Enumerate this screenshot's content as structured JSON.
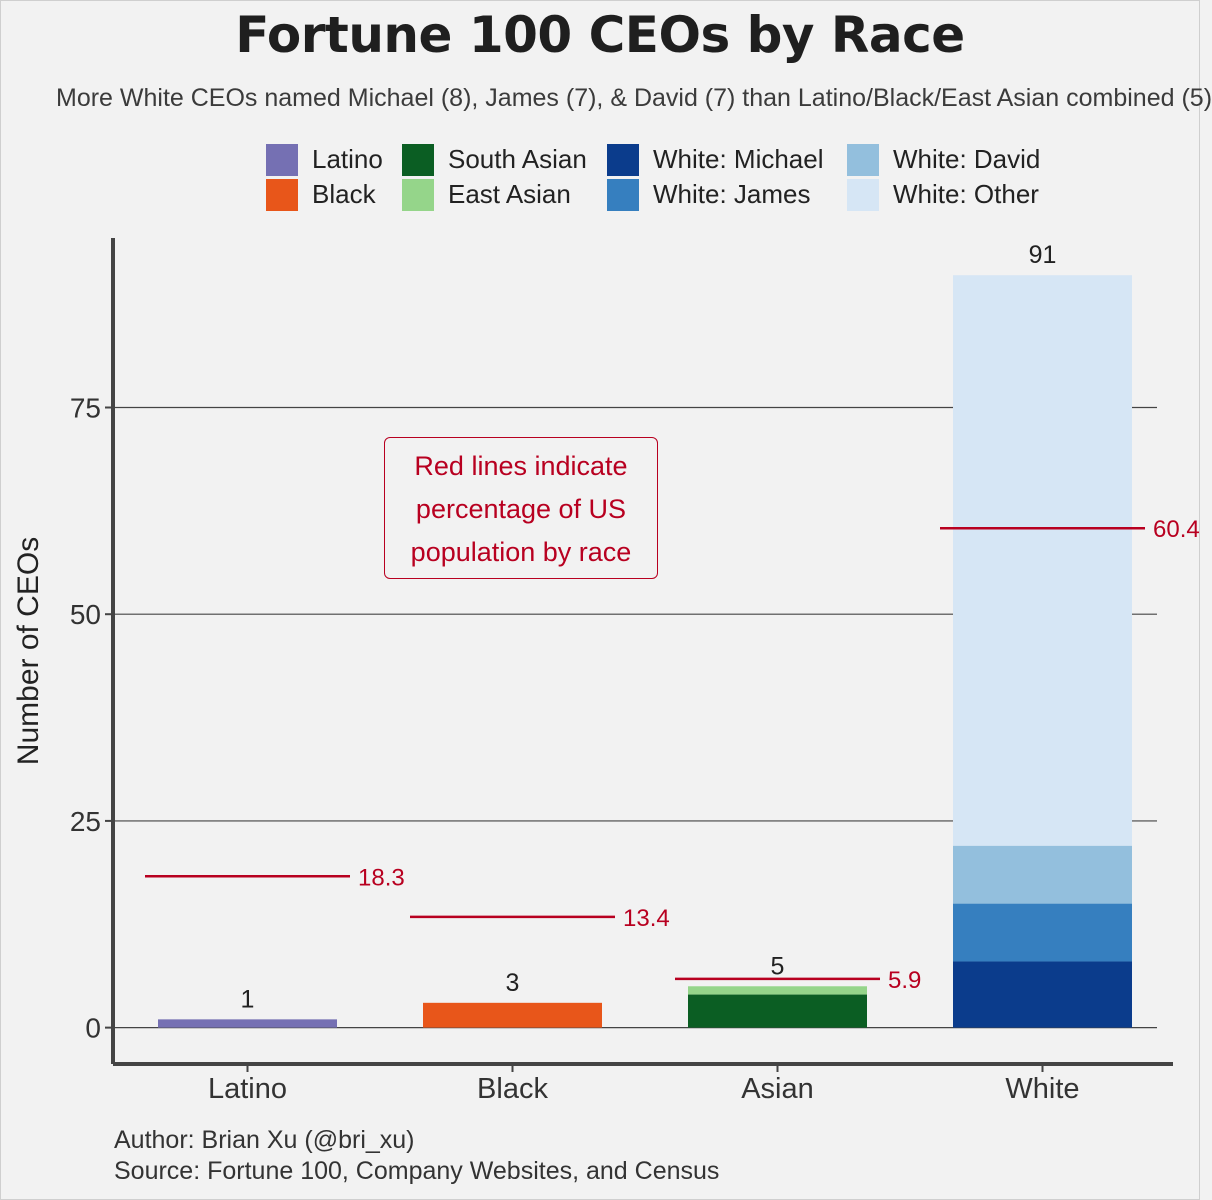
{
  "title": "Fortune 100 CEOs by Race",
  "subtitle": "More White CEOs named Michael (8), James (7), & David (7) than Latino/Black/East Asian combined (5)",
  "legend": [
    {
      "label": "Latino",
      "color": "#7570b3"
    },
    {
      "label": "South Asian",
      "color": "#0b5e23"
    },
    {
      "label": "White: Michael",
      "color": "#0b3c8c"
    },
    {
      "label": "White: David",
      "color": "#93bfdd"
    },
    {
      "label": "Black",
      "color": "#e8561a"
    },
    {
      "label": "East Asian",
      "color": "#95d58a"
    },
    {
      "label": "White: James",
      "color": "#367fbf"
    },
    {
      "label": "White: Other",
      "color": "#d6e6f5"
    }
  ],
  "annotation": {
    "line1": "Red lines indicate",
    "line2": "percentage of US",
    "line3": "population by race",
    "color": "#b80020"
  },
  "caption": {
    "author": "Author: Brian Xu (@bri_xu)",
    "source": "Source: Fortune 100, Company Websites, and Census"
  },
  "chart_data": {
    "type": "bar",
    "stacked": true,
    "categories": [
      "Latino",
      "Black",
      "Asian",
      "White"
    ],
    "ylabel": "Number of CEOs",
    "xlabel": "",
    "ylim": [
      -4.4,
      95.5
    ],
    "yticks": [
      0,
      25,
      50,
      75
    ],
    "grid": "horizontal",
    "legend_position": "top",
    "series": [
      {
        "name": "Latino",
        "color": "#7570b3",
        "values": [
          1,
          0,
          0,
          0
        ]
      },
      {
        "name": "Black",
        "color": "#e8561a",
        "values": [
          0,
          3,
          0,
          0
        ]
      },
      {
        "name": "South Asian",
        "color": "#0b5e23",
        "values": [
          0,
          0,
          4,
          0
        ]
      },
      {
        "name": "East Asian",
        "color": "#95d58a",
        "values": [
          0,
          0,
          1,
          0
        ]
      },
      {
        "name": "White: Michael",
        "color": "#0b3c8c",
        "values": [
          0,
          0,
          0,
          8
        ]
      },
      {
        "name": "White: James",
        "color": "#367fbf",
        "values": [
          0,
          0,
          0,
          7
        ]
      },
      {
        "name": "White: David",
        "color": "#93bfdd",
        "values": [
          0,
          0,
          0,
          7
        ]
      },
      {
        "name": "White: Other",
        "color": "#d6e6f5",
        "values": [
          0,
          0,
          0,
          69
        ]
      }
    ],
    "totals": [
      1,
      3,
      5,
      91
    ],
    "population_pct": [
      18.3,
      13.4,
      5.9,
      60.4
    ],
    "population_line_color": "#b80020"
  }
}
